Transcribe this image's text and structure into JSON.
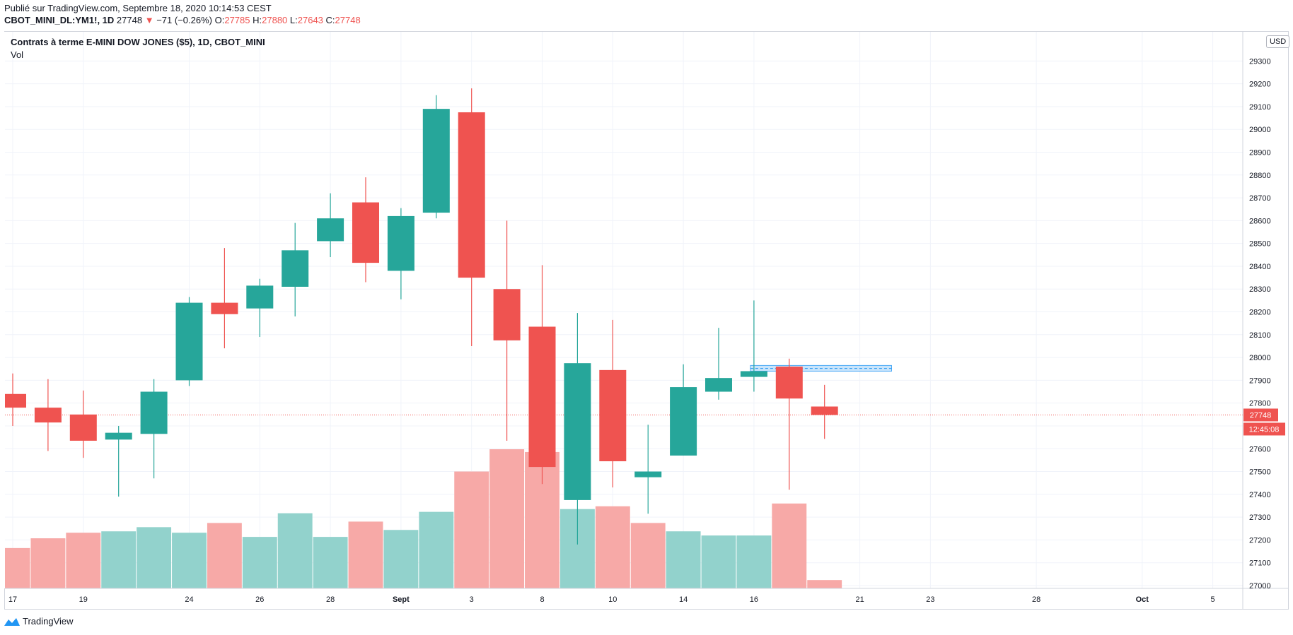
{
  "published": "Publié sur TradingView.com, Septembre 18, 2020 10:14:53 CEST",
  "ohlc": {
    "symbol": "CBOT_MINI_DL:YM1!, 1D",
    "last": "27748",
    "arrow": "▼",
    "change": "−71 (−0.26%)",
    "o_label": "O:",
    "o": "27785",
    "h_label": "H:",
    "h": "27880",
    "l_label": "L:",
    "l": "27643",
    "c_label": "C:",
    "c": "27748"
  },
  "legend": {
    "title": "Contrats à terme E-MINI DOW JONES ($5), 1D, CBOT_MINI",
    "volume": "Vol"
  },
  "currency": "USD",
  "footer": {
    "brand": "TradingView",
    "icon": "tradingview-logo-icon"
  },
  "colors": {
    "up": "#26a69a",
    "down": "#ef5350",
    "up_vol": "#92d2cc",
    "down_vol": "#f7a9a7",
    "grid": "#f0f3fa"
  },
  "chart_data": {
    "type": "candlestick",
    "y_range": [
      27000,
      29400
    ],
    "y_ticks": [
      27000,
      27100,
      27200,
      27300,
      27400,
      27500,
      27600,
      27700,
      27800,
      27900,
      28000,
      28100,
      28200,
      28300,
      28400,
      28500,
      28600,
      28700,
      28800,
      28900,
      29000,
      29100,
      29200,
      29300
    ],
    "x_labels": [
      "17",
      "19",
      "24",
      "26",
      "28",
      "Sept",
      "3",
      "8",
      "10",
      "14",
      "16",
      "21",
      "23",
      "28",
      "Oct",
      "5"
    ],
    "x_label_slots": [
      0,
      2,
      5,
      7,
      9,
      11,
      13,
      15,
      17,
      19,
      21,
      24,
      26,
      29,
      32,
      34
    ],
    "candles": [
      {
        "slot": 0,
        "o": 27840,
        "h": 27930,
        "l": 27700,
        "c": 27780
      },
      {
        "slot": 1,
        "o": 27780,
        "h": 27905,
        "l": 27590,
        "c": 27715
      },
      {
        "slot": 2,
        "o": 27750,
        "h": 27855,
        "l": 27560,
        "c": 27635
      },
      {
        "slot": 3,
        "o": 27640,
        "h": 27700,
        "l": 27390,
        "c": 27670
      },
      {
        "slot": 4,
        "o": 27665,
        "h": 27905,
        "l": 27470,
        "c": 27850
      },
      {
        "slot": 5,
        "o": 27900,
        "h": 28265,
        "l": 27875,
        "c": 28240
      },
      {
        "slot": 6,
        "o": 28240,
        "h": 28480,
        "l": 28040,
        "c": 28190
      },
      {
        "slot": 7,
        "o": 28215,
        "h": 28345,
        "l": 28090,
        "c": 28315
      },
      {
        "slot": 8,
        "o": 28310,
        "h": 28590,
        "l": 28180,
        "c": 28470
      },
      {
        "slot": 9,
        "o": 28510,
        "h": 28720,
        "l": 28440,
        "c": 28610
      },
      {
        "slot": 10,
        "o": 28680,
        "h": 28790,
        "l": 28330,
        "c": 28415
      },
      {
        "slot": 11,
        "o": 28380,
        "h": 28655,
        "l": 28255,
        "c": 28620
      },
      {
        "slot": 12,
        "o": 28635,
        "h": 29150,
        "l": 28610,
        "c": 29090
      },
      {
        "slot": 13,
        "o": 29075,
        "h": 29180,
        "l": 28050,
        "c": 28350
      },
      {
        "slot": 14,
        "o": 28300,
        "h": 28600,
        "l": 27635,
        "c": 28075
      },
      {
        "slot": 15,
        "o": 28135,
        "h": 28405,
        "l": 27445,
        "c": 27520
      },
      {
        "slot": 16,
        "o": 27375,
        "h": 28195,
        "l": 27180,
        "c": 27975
      },
      {
        "slot": 17,
        "o": 27945,
        "h": 28165,
        "l": 27430,
        "c": 27545
      },
      {
        "slot": 18,
        "o": 27475,
        "h": 27705,
        "l": 27315,
        "c": 27500
      },
      {
        "slot": 19,
        "o": 27570,
        "h": 27970,
        "l": 27570,
        "c": 27870
      },
      {
        "slot": 20,
        "o": 27850,
        "h": 28130,
        "l": 27815,
        "c": 27910
      },
      {
        "slot": 21,
        "o": 27915,
        "h": 28250,
        "l": 27850,
        "c": 27940
      },
      {
        "slot": 22,
        "o": 27960,
        "h": 27995,
        "l": 27420,
        "c": 27820
      },
      {
        "slot": 23,
        "o": 27785,
        "h": 27880,
        "l": 27643,
        "c": 27748
      }
    ],
    "volume": [
      {
        "slot": 0,
        "v": 0.29,
        "dir": "down"
      },
      {
        "slot": 1,
        "v": 0.36,
        "dir": "down"
      },
      {
        "slot": 2,
        "v": 0.4,
        "dir": "down"
      },
      {
        "slot": 3,
        "v": 0.41,
        "dir": "up"
      },
      {
        "slot": 4,
        "v": 0.44,
        "dir": "up"
      },
      {
        "slot": 5,
        "v": 0.4,
        "dir": "up"
      },
      {
        "slot": 6,
        "v": 0.47,
        "dir": "down"
      },
      {
        "slot": 7,
        "v": 0.37,
        "dir": "up"
      },
      {
        "slot": 8,
        "v": 0.54,
        "dir": "up"
      },
      {
        "slot": 9,
        "v": 0.37,
        "dir": "up"
      },
      {
        "slot": 10,
        "v": 0.48,
        "dir": "down"
      },
      {
        "slot": 11,
        "v": 0.42,
        "dir": "up"
      },
      {
        "slot": 12,
        "v": 0.55,
        "dir": "up"
      },
      {
        "slot": 13,
        "v": 0.84,
        "dir": "down"
      },
      {
        "slot": 14,
        "v": 1.0,
        "dir": "down"
      },
      {
        "slot": 15,
        "v": 0.98,
        "dir": "down"
      },
      {
        "slot": 16,
        "v": 0.57,
        "dir": "up"
      },
      {
        "slot": 17,
        "v": 0.59,
        "dir": "down"
      },
      {
        "slot": 18,
        "v": 0.47,
        "dir": "down"
      },
      {
        "slot": 19,
        "v": 0.41,
        "dir": "up"
      },
      {
        "slot": 20,
        "v": 0.38,
        "dir": "up"
      },
      {
        "slot": 21,
        "v": 0.38,
        "dir": "up"
      },
      {
        "slot": 22,
        "v": 0.61,
        "dir": "down"
      },
      {
        "slot": 23,
        "v": 0.06,
        "dir": "down"
      }
    ],
    "last_price": {
      "value": 27748,
      "label": "27748",
      "countdown": "12:45:08"
    },
    "zone": {
      "from_slot": 21,
      "to_slot": 25,
      "top": 27965,
      "bottom": 27940,
      "mid": 27952
    }
  }
}
